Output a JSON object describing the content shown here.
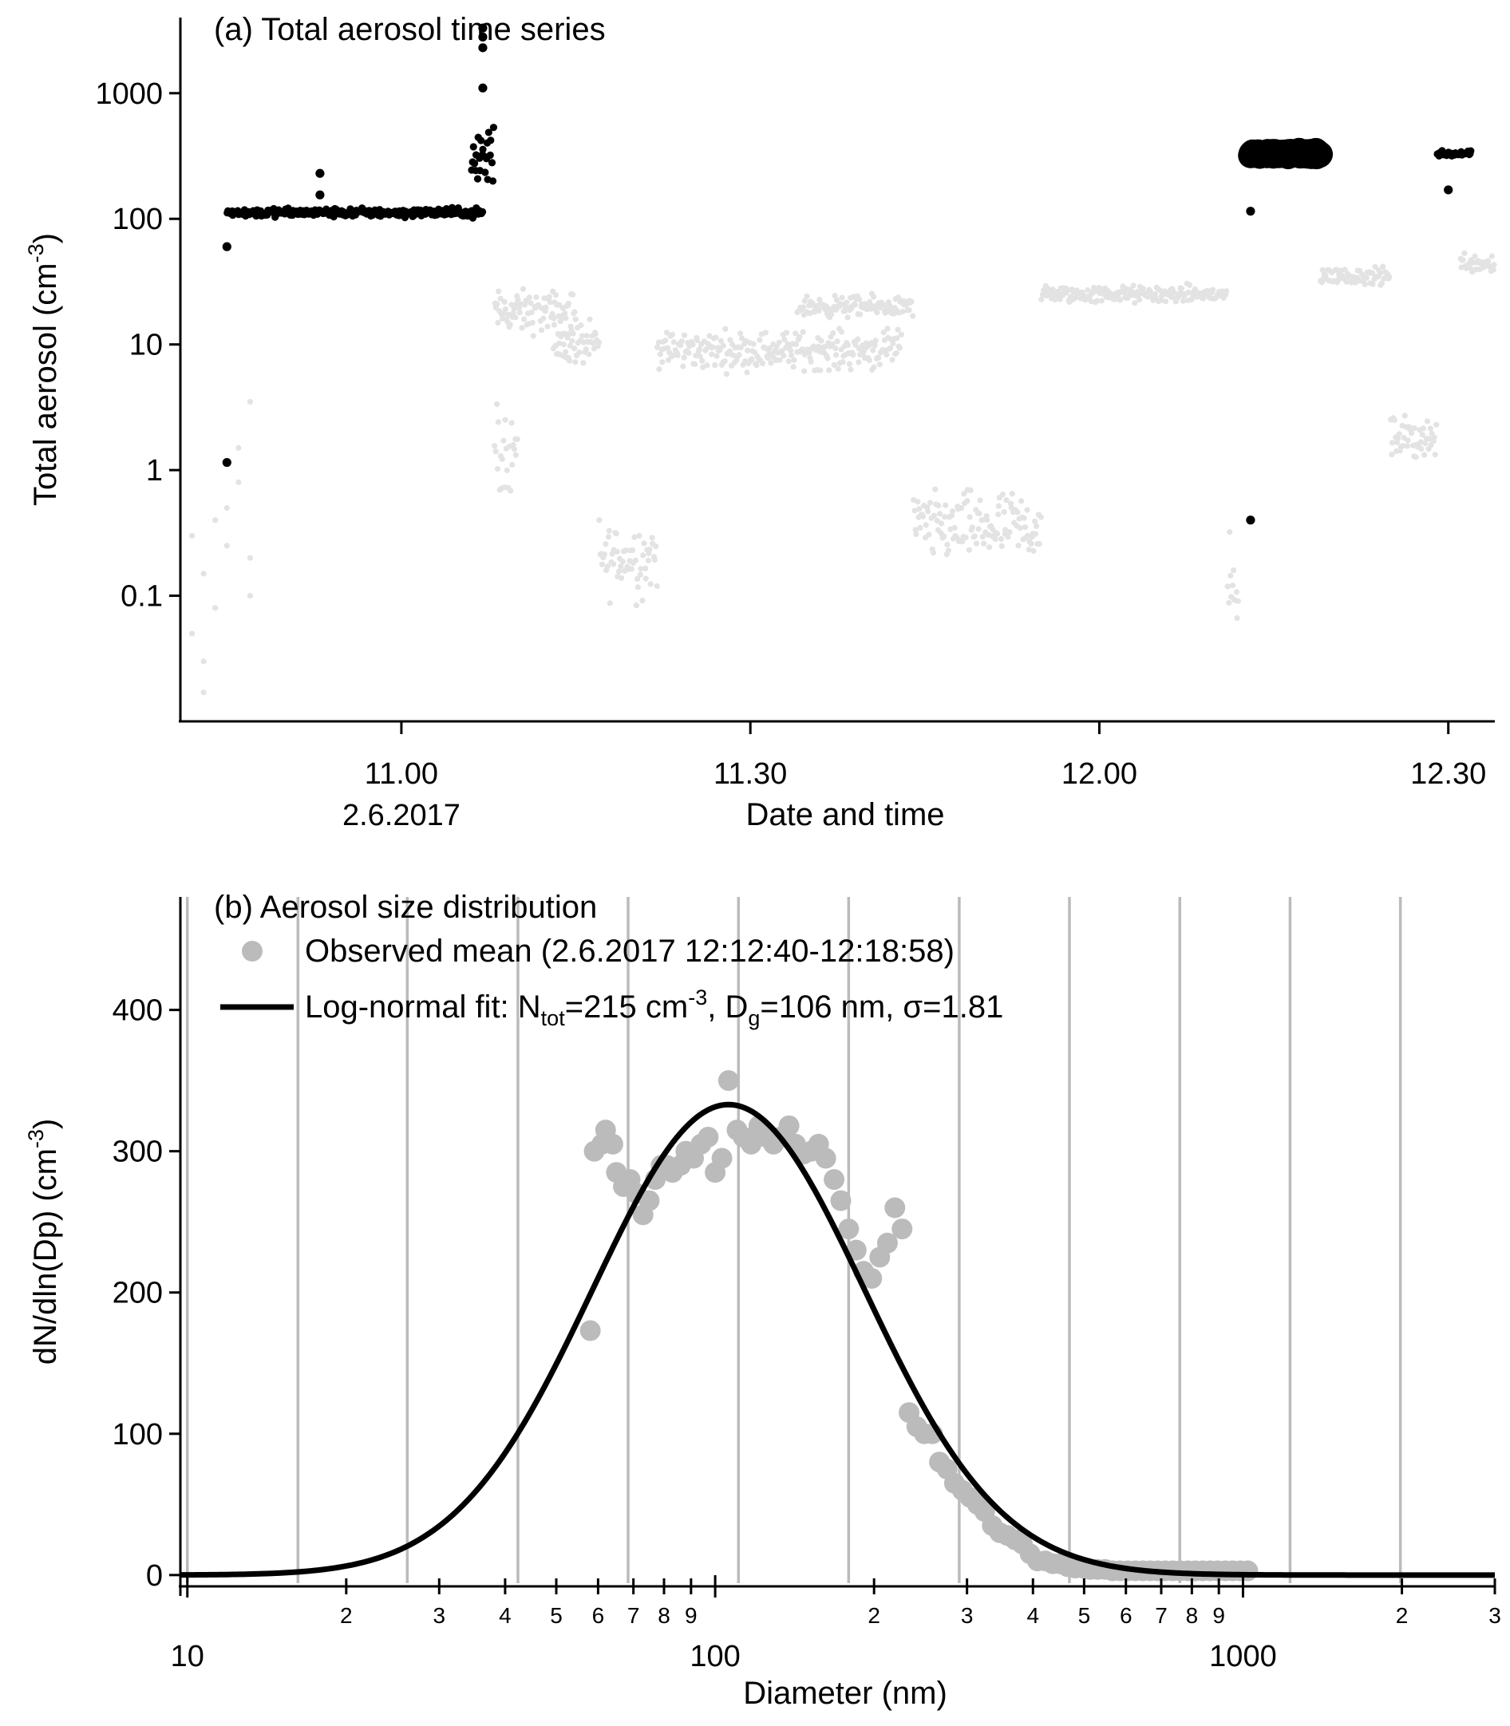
{
  "chart_data": [
    {
      "type": "scatter",
      "title": "(a) Total aerosol time series",
      "xlabel": "Date and time",
      "ylabel": "Total aerosol (cm",
      "ylabel_sup": "-3",
      "ylabel_close": ")",
      "y_scale": "log",
      "ylim": [
        0.01,
        4000
      ],
      "xlim": [
        "10:41",
        "12:34"
      ],
      "x_ticks": [
        {
          "x": "11:00",
          "label": "11.00",
          "sublabel": "2.6.2017"
        },
        {
          "x": "11:30",
          "label": "11.30",
          "sublabel": ""
        },
        {
          "x": "12:00",
          "label": "12.00",
          "sublabel": ""
        },
        {
          "x": "12:30",
          "label": "12.30",
          "sublabel": ""
        }
      ],
      "y_ticks": [
        {
          "value": 0.1,
          "label": "0.1"
        },
        {
          "value": 1,
          "label": "1"
        },
        {
          "value": 10,
          "label": "10"
        },
        {
          "value": 100,
          "label": "100"
        },
        {
          "value": 1000,
          "label": "1000"
        }
      ],
      "grid": false,
      "series": [
        {
          "color": "#e3e3e3",
          "marker": "small dot",
          "segments": [
            {
              "from": "10:42",
              "to": "10:45",
              "points": [
                [
                  "10:42",
                  0.05
                ],
                [
                  "10:42",
                  0.3
                ],
                [
                  "10:43",
                  0.03
                ],
                [
                  "10:43",
                  0.017
                ],
                [
                  "10:43",
                  0.15
                ],
                [
                  "10:44",
                  0.4
                ],
                [
                  "10:44",
                  0.08
                ],
                [
                  "10:45",
                  0.5
                ],
                [
                  "10:45",
                  0.25
                ],
                [
                  "10:46",
                  0.8
                ],
                [
                  "10:46",
                  1.5
                ],
                [
                  "10:47",
                  3.5
                ],
                [
                  "10:47",
                  0.2
                ],
                [
                  "10:47",
                  0.1
                ]
              ]
            },
            {
              "from": "11:08",
              "to": "11:15",
              "level": 18,
              "spread": 0.25
            },
            {
              "from": "11:08",
              "to": "11:10",
              "level": 1.5,
              "spread": 0.5
            },
            {
              "from": "11:13",
              "to": "11:17",
              "level": 10,
              "spread": 0.25
            },
            {
              "from": "11:17",
              "to": "11:22",
              "level": 0.2,
              "spread": 0.45
            },
            {
              "from": "11:22",
              "to": "11:43",
              "level": 9,
              "spread": 0.22
            },
            {
              "from": "11:34",
              "to": "11:44",
              "level": 20,
              "spread": 0.12
            },
            {
              "from": "11:44",
              "to": "11:55",
              "level": 0.35,
              "spread": 0.4
            },
            {
              "from": "11:55",
              "to": "12:11",
              "level": 25,
              "spread": 0.1
            },
            {
              "from": "12:11",
              "to": "12:12",
              "level": 0.1,
              "spread": 0.6
            },
            {
              "from": "12:19",
              "to": "12:25",
              "level": 35,
              "spread": 0.1
            },
            {
              "from": "12:25",
              "to": "12:29",
              "level": 1.8,
              "spread": 0.25
            },
            {
              "from": "12:31",
              "to": "12:34",
              "level": 45,
              "spread": 0.12
            }
          ]
        },
        {
          "color": "#000000",
          "marker": "dot",
          "segments": [
            {
              "from": "10:45",
              "to": "11:07",
              "level": 112,
              "spread": 0.05
            },
            {
              "from": "11:06",
              "to": "11:08",
              "level": 300,
              "spread": 0.5
            },
            {
              "from": "12:13",
              "to": "12:19",
              "level": 330,
              "spread": 0.03,
              "marker": "large dot"
            },
            {
              "from": "12:29",
              "to": "12:32",
              "level": 330,
              "spread": 0.03
            }
          ],
          "points": [
            [
              "10:45",
              60
            ],
            [
              "10:45",
              1.15
            ],
            [
              "10:53",
              230
            ],
            [
              "10:53",
              155
            ],
            [
              "11:07",
              3300
            ],
            [
              "11:07",
              2800
            ],
            [
              "11:07",
              2300
            ],
            [
              "11:07",
              1100
            ],
            [
              "12:13",
              115
            ],
            [
              "12:13",
              0.4
            ],
            [
              "12:30",
              170
            ]
          ]
        }
      ]
    },
    {
      "type": "scatter",
      "title": "(b) Aerosol size distribution",
      "xlabel": "Diameter (nm)",
      "ylabel": "dN/dln(Dp) (cm",
      "ylabel_sup": "-3",
      "ylabel_close": ")",
      "x_scale": "log",
      "xlim": [
        9.7,
        3000
      ],
      "ylim": [
        -8,
        480
      ],
      "y_ticks": [
        {
          "value": 0,
          "label": "0"
        },
        {
          "value": 100,
          "label": "100"
        },
        {
          "value": 200,
          "label": "200"
        },
        {
          "value": 300,
          "label": "300"
        },
        {
          "value": 400,
          "label": "400"
        }
      ],
      "x_major_ticks": [
        {
          "value": 10,
          "label": "10"
        },
        {
          "value": 100,
          "label": "100"
        },
        {
          "value": 1000,
          "label": "1000"
        }
      ],
      "x_minor_ticks": [
        {
          "value": 20,
          "label": "2"
        },
        {
          "value": 30,
          "label": "3"
        },
        {
          "value": 40,
          "label": "4"
        },
        {
          "value": 50,
          "label": "5"
        },
        {
          "value": 60,
          "label": "6"
        },
        {
          "value": 70,
          "label": "7"
        },
        {
          "value": 80,
          "label": "8"
        },
        {
          "value": 90,
          "label": "9"
        },
        {
          "value": 200,
          "label": "2"
        },
        {
          "value": 300,
          "label": "3"
        },
        {
          "value": 400,
          "label": "4"
        },
        {
          "value": 500,
          "label": "5"
        },
        {
          "value": 600,
          "label": "6"
        },
        {
          "value": 700,
          "label": "7"
        },
        {
          "value": 800,
          "label": "8"
        },
        {
          "value": 900,
          "label": "9"
        },
        {
          "value": 2000,
          "label": "2"
        },
        {
          "value": 3000,
          "label": "3"
        }
      ],
      "grid_x": [
        10,
        16.2,
        26.1,
        42.3,
        68.4,
        110.7,
        179,
        290,
        469,
        759,
        1228,
        1987
      ],
      "legend_position": "top-left",
      "series": [
        {
          "name_parts": [
            "Observed mean (2.6.2017 12:12:40-12:18:58)"
          ],
          "color": "#bbbbbb",
          "marker": "circle",
          "x": [
            58,
            59,
            61,
            62,
            64,
            65,
            67,
            69,
            71,
            73,
            75,
            77,
            79,
            81,
            83,
            86,
            88,
            91,
            94,
            97,
            100,
            103,
            106,
            110,
            113,
            117,
            121,
            125,
            129,
            133,
            138,
            142,
            147,
            152,
            157,
            162,
            168,
            173,
            179,
            185,
            191,
            198,
            205,
            212,
            219,
            226,
            233,
            241,
            249,
            258,
            266,
            275,
            284,
            294,
            304,
            314,
            324,
            335,
            346,
            358,
            370,
            382,
            395,
            408,
            422,
            436,
            450,
            465,
            481,
            497,
            513,
            530,
            548,
            566,
            585,
            605,
            625,
            646,
            667,
            689,
            712,
            736,
            760,
            786,
            812,
            839,
            867,
            896,
            926,
            956,
            988,
            1021
          ],
          "y": [
            173,
            300,
            305,
            315,
            305,
            285,
            275,
            280,
            270,
            255,
            265,
            280,
            290,
            290,
            285,
            290,
            300,
            295,
            305,
            310,
            285,
            295,
            350,
            315,
            310,
            305,
            318,
            310,
            305,
            310,
            318,
            305,
            298,
            300,
            305,
            295,
            280,
            265,
            245,
            230,
            215,
            210,
            225,
            235,
            260,
            245,
            115,
            105,
            100,
            100,
            80,
            75,
            65,
            60,
            55,
            50,
            45,
            35,
            30,
            28,
            25,
            22,
            15,
            10,
            10,
            8,
            8,
            6,
            5,
            5,
            4,
            4,
            4,
            3,
            3,
            3,
            3,
            3,
            3,
            3,
            3,
            3,
            3,
            3,
            3,
            3,
            3,
            3,
            3,
            3,
            3,
            3
          ]
        },
        {
          "name_parts": [
            "Log-normal fit: N",
            "tot",
            "=215 cm",
            "-3",
            ", D",
            "g",
            "=106 nm, σ=1.81"
          ],
          "color": "#000000",
          "marker": "line",
          "N_tot": 215,
          "D_g": 106,
          "sigma_g": 1.81,
          "peak": 333
        }
      ]
    }
  ]
}
